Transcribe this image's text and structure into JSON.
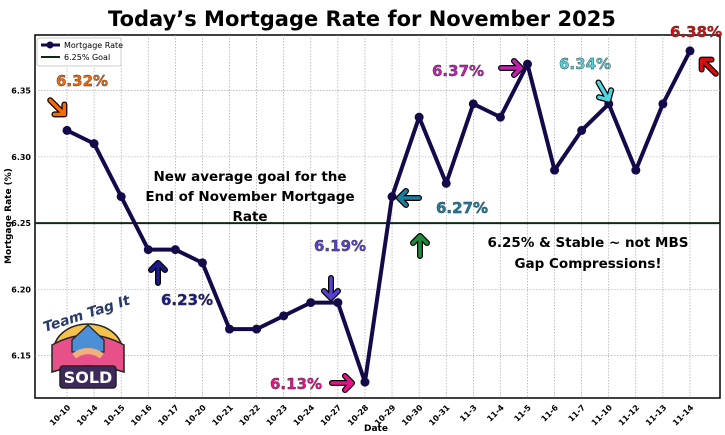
{
  "chart_data": {
    "type": "line",
    "title": "Today’s Mortgage Rate for November 2025",
    "xlabel": "Date",
    "ylabel": "Mortgage Rate (%)",
    "categories": [
      "10-10",
      "10-14",
      "10-15",
      "10-16",
      "10-17",
      "10-20",
      "10-21",
      "10-22",
      "10-23",
      "10-24",
      "10-27",
      "10-28",
      "10-29",
      "10-30",
      "10-31",
      "11-3",
      "11-4",
      "11-5",
      "11-6",
      "11-7",
      "11-10",
      "11-12",
      "11-13",
      "11-14"
    ],
    "series": [
      {
        "name": "Mortgage Rate",
        "color": "#140a4a",
        "values": [
          6.32,
          6.31,
          6.27,
          6.23,
          6.23,
          6.22,
          6.17,
          6.17,
          6.18,
          6.19,
          6.19,
          6.13,
          6.27,
          6.33,
          6.28,
          6.34,
          6.33,
          6.37,
          6.29,
          6.32,
          6.34,
          6.29,
          6.34,
          6.38
        ]
      }
    ],
    "reference_line": {
      "name": "6.25% Goal",
      "value": 6.25,
      "color": "#0f2a12"
    },
    "ylim": [
      6.118,
      6.392
    ],
    "yticks": [
      "6.15",
      "6.20",
      "6.25",
      "6.30",
      "6.35"
    ],
    "grid": true,
    "legend": "top-left",
    "annotations": [
      {
        "text": "6.32%",
        "color": "#f26a0c"
      },
      {
        "text": "6.23%",
        "color": "#1a1a8c"
      },
      {
        "text": "6.19%",
        "color": "#5a3fd0"
      },
      {
        "text": "6.13%",
        "color": "#e8128a"
      },
      {
        "text": "6.27%",
        "color": "#1a7fa0"
      },
      {
        "text": "6.37%",
        "color": "#c21fb0"
      },
      {
        "text": "6.34%",
        "color": "#4fd6e0"
      },
      {
        "text": "6.38%",
        "color": "#d40f0f"
      }
    ],
    "notes": [
      [
        "New average goal for the",
        "End of November Mortgage",
        "Rate"
      ],
      [
        "6.25% & Stable ~ not MBS",
        "Gap Compressions!"
      ]
    ]
  },
  "logo": {
    "text_top": "Team Tag It",
    "text_bottom": "SOLD"
  }
}
